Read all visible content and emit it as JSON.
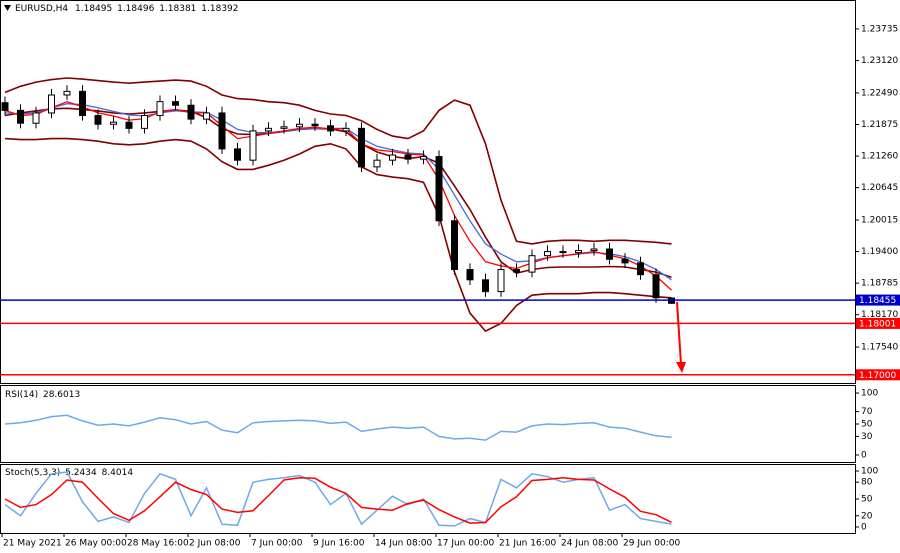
{
  "chart_data": [
    {
      "type": "candlestick",
      "title": "EURUSD,H4",
      "categories": [
        "21 May 2021",
        null,
        null,
        null,
        "26 May 00:00",
        null,
        null,
        null,
        "28 May 16:00",
        null,
        null,
        null,
        "2 Jun 08:00",
        null,
        null,
        null,
        "7 Jun 00:00",
        null,
        null,
        null,
        "9 Jun 16:00",
        null,
        null,
        null,
        "14 Jun 08:00",
        null,
        null,
        null,
        "17 Jun 00:00",
        null,
        null,
        null,
        "21 Jun 16:00",
        null,
        null,
        null,
        "24 Jun 08:00",
        null,
        null,
        null,
        "29 Jun 00:00",
        null,
        null,
        null
      ],
      "open": [
        1.223,
        1.2215,
        1.219,
        1.221,
        1.2245,
        1.2252,
        1.2205,
        1.2188,
        1.2192,
        1.218,
        1.2205,
        1.2232,
        1.2225,
        1.2198,
        1.221,
        1.214,
        1.2118,
        1.2175,
        1.218,
        1.2183,
        1.2188,
        1.2185,
        1.2175,
        1.218,
        1.2105,
        1.2118,
        1.2128,
        1.212,
        1.2125,
        1.2,
        1.1905,
        1.1885,
        1.1862,
        1.1905,
        1.19,
        1.1932,
        1.194,
        1.1938,
        1.1942,
        1.1945,
        1.1925,
        1.1918,
        1.1895,
        1.18495
      ],
      "high": [
        1.2242,
        1.2227,
        1.2222,
        1.2257,
        1.2264,
        1.2264,
        1.2217,
        1.2204,
        1.2204,
        1.2217,
        1.2244,
        1.2244,
        1.2237,
        1.2222,
        1.2222,
        1.2152,
        1.2187,
        1.2192,
        1.2195,
        1.22,
        1.22,
        1.2197,
        1.2192,
        1.2192,
        1.213,
        1.214,
        1.214,
        1.2137,
        1.2137,
        1.2012,
        1.1917,
        1.1897,
        1.1917,
        1.1917,
        1.1944,
        1.1952,
        1.1952,
        1.1954,
        1.1957,
        1.1957,
        1.1937,
        1.193,
        1.1907,
        1.18496
      ],
      "low": [
        1.2205,
        1.218,
        1.218,
        1.22,
        1.2235,
        1.2195,
        1.2178,
        1.2178,
        1.217,
        1.217,
        1.2195,
        1.2215,
        1.2188,
        1.2188,
        1.213,
        1.2108,
        1.2108,
        1.2165,
        1.217,
        1.2173,
        1.2175,
        1.2165,
        1.2165,
        1.2095,
        1.2095,
        1.2108,
        1.211,
        1.211,
        1.199,
        1.1895,
        1.1875,
        1.1852,
        1.1852,
        1.189,
        1.189,
        1.1922,
        1.1928,
        1.1928,
        1.1932,
        1.1915,
        1.1908,
        1.1885,
        1.184,
        1.18381
      ],
      "close": [
        1.2215,
        1.219,
        1.221,
        1.2245,
        1.2252,
        1.2205,
        1.2188,
        1.2192,
        1.218,
        1.2205,
        1.2232,
        1.2225,
        1.2198,
        1.221,
        1.214,
        1.2118,
        1.2175,
        1.218,
        1.2183,
        1.2188,
        1.2185,
        1.2175,
        1.218,
        1.2105,
        1.2118,
        1.2128,
        1.212,
        1.2125,
        1.2,
        1.1905,
        1.1885,
        1.1862,
        1.1905,
        1.19,
        1.1932,
        1.194,
        1.1938,
        1.1942,
        1.1945,
        1.1925,
        1.1918,
        1.1895,
        1.185,
        1.18392
      ],
      "lines": [
        {
          "color": "#800000",
          "values": [
            1.225,
            1.2262,
            1.227,
            1.2275,
            1.2278,
            1.2276,
            1.2273,
            1.227,
            1.2268,
            1.227,
            1.2272,
            1.2274,
            1.2272,
            1.2262,
            1.2245,
            1.2238,
            1.2236,
            1.2232,
            1.223,
            1.2225,
            1.2215,
            1.2208,
            1.2205,
            1.2195,
            1.2178,
            1.2165,
            1.216,
            1.2175,
            1.2215,
            1.2235,
            1.2225,
            1.215,
            1.204,
            1.196,
            1.1955,
            1.196,
            1.1962,
            1.1962,
            1.196,
            1.1962,
            1.1962,
            1.196,
            1.1958,
            1.1955
          ]
        },
        {
          "color": "#800000",
          "values": [
            1.2205,
            1.221,
            1.2214,
            1.2218,
            1.2219,
            1.2217,
            1.2214,
            1.221,
            1.2208,
            1.221,
            1.2213,
            1.2216,
            1.2213,
            1.2201,
            1.218,
            1.2169,
            1.2168,
            1.217,
            1.2174,
            1.2178,
            1.218,
            1.2179,
            1.2173,
            1.215,
            1.2134,
            1.2125,
            1.2121,
            1.2125,
            1.2112,
            1.2068,
            1.2022,
            1.1968,
            1.192,
            1.1898,
            1.1905,
            1.1909,
            1.191,
            1.191,
            1.191,
            1.1911,
            1.191,
            1.1905,
            1.19,
            1.189
          ]
        },
        {
          "color": "#800000",
          "values": [
            1.216,
            1.2158,
            1.2158,
            1.216,
            1.216,
            1.2158,
            1.2155,
            1.215,
            1.2148,
            1.215,
            1.2155,
            1.2158,
            1.2155,
            1.214,
            1.2115,
            1.21,
            1.21,
            1.2108,
            1.2118,
            1.213,
            1.2145,
            1.215,
            1.214,
            1.2105,
            1.209,
            1.2085,
            1.2082,
            1.2075,
            1.201,
            1.19,
            1.182,
            1.1785,
            1.18,
            1.1835,
            1.1855,
            1.1858,
            1.1858,
            1.1858,
            1.186,
            1.186,
            1.1858,
            1.1855,
            1.1852,
            1.185
          ]
        },
        {
          "color": "#4169e1",
          "values": [
            1.221,
            1.2208,
            1.221,
            1.222,
            1.2228,
            1.2226,
            1.222,
            1.2213,
            1.2206,
            1.2204,
            1.221,
            1.2214,
            1.2212,
            1.2211,
            1.2196,
            1.2178,
            1.2172,
            1.2172,
            1.2174,
            1.2178,
            1.218,
            1.218,
            1.218,
            1.216,
            1.2145,
            1.2138,
            1.2132,
            1.213,
            1.21,
            1.205,
            1.2,
            1.1955,
            1.1935,
            1.192,
            1.1922,
            1.1928,
            1.1932,
            1.1935,
            1.1938,
            1.1936,
            1.193,
            1.192,
            1.1905,
            1.1885
          ]
        },
        {
          "color": "#ff0000",
          "values": [
            1.2215,
            1.2205,
            1.2207,
            1.222,
            1.2232,
            1.2222,
            1.221,
            1.2204,
            1.2196,
            1.2199,
            1.2212,
            1.2217,
            1.221,
            1.221,
            1.2185,
            1.216,
            1.2165,
            1.217,
            1.2175,
            1.218,
            1.2182,
            1.2179,
            1.2179,
            1.215,
            1.2138,
            1.2135,
            1.213,
            1.2128,
            1.208,
            1.201,
            1.196,
            1.192,
            1.1912,
            1.1907,
            1.1918,
            1.1928,
            1.1932,
            1.1936,
            1.194,
            1.1933,
            1.1926,
            1.1912,
            1.1892,
            1.1865
          ]
        }
      ],
      "levels": [
        {
          "value": 1.18455,
          "label": "1.18455",
          "color": "#0000cd"
        },
        {
          "value": 1.18001,
          "label": "1.18001",
          "color": "#ff0000"
        },
        {
          "value": 1.17,
          "label": "1.17000",
          "color": "#ff0000"
        }
      ],
      "ylim": [
        1.1684,
        1.243
      ],
      "yticks": [
        1.23735,
        {
          "value": 1.2312,
          "label": "1.23120"
        },
        {
          "value": 1.2249,
          "label": "1.22490"
        },
        1.21875,
        {
          "value": 1.2126,
          "label": "1.21260"
        },
        1.20645,
        1.20015,
        {
          "value": 1.194,
          "label": "1.19400"
        },
        1.18785,
        {
          "value": 1.1817,
          "label": "1.18170"
        },
        {
          "value": 1.1754,
          "label": "1.17540"
        }
      ]
    },
    {
      "type": "line",
      "title": "RSI(14)",
      "series": [
        {
          "color": "#6fa8e8",
          "values": [
            50,
            52,
            56,
            62,
            64,
            55,
            48,
            50,
            47,
            53,
            60,
            57,
            50,
            54,
            40,
            36,
            52,
            54,
            55,
            56,
            55,
            51,
            53,
            38,
            42,
            45,
            43,
            45,
            30,
            26,
            27,
            24,
            38,
            37,
            47,
            50,
            49,
            51,
            52,
            45,
            43,
            37,
            31,
            28.6013
          ]
        }
      ],
      "ylim": [
        0,
        100
      ],
      "yticks": [
        100,
        70,
        50,
        30,
        0
      ]
    },
    {
      "type": "line",
      "title": "Stoch(5,3,3)",
      "series": [
        {
          "color": "#6fa8e8",
          "values": [
            40,
            20,
            60,
            95,
            98,
            45,
            10,
            18,
            8,
            60,
            95,
            85,
            20,
            70,
            5,
            3,
            80,
            85,
            88,
            92,
            80,
            40,
            60,
            5,
            30,
            55,
            40,
            50,
            3,
            2,
            15,
            8,
            85,
            70,
            95,
            90,
            80,
            85,
            88,
            30,
            40,
            15,
            10,
            5.2434
          ]
        },
        {
          "color": "#ff0000",
          "values": [
            50,
            35,
            40,
            58,
            84,
            80,
            51,
            24,
            12,
            29,
            54,
            80,
            67,
            58,
            32,
            26,
            29,
            56,
            84,
            88,
            87,
            71,
            60,
            35,
            32,
            30,
            42,
            48,
            31,
            18,
            7,
            8,
            36,
            54,
            83,
            85,
            88,
            85,
            84,
            68,
            53,
            28,
            22,
            8.4014
          ]
        }
      ],
      "ylim": [
        0,
        100
      ],
      "yticks": [
        100,
        80,
        50,
        20,
        0
      ]
    }
  ]
}
